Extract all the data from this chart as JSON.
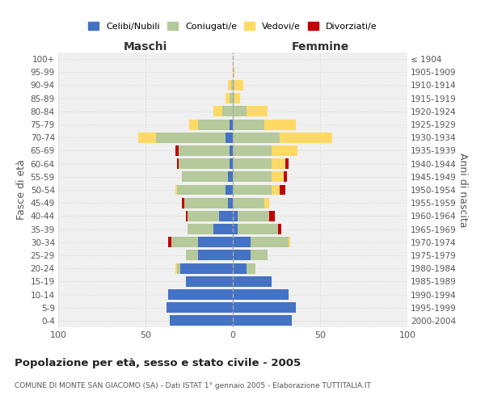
{
  "age_groups": [
    "100+",
    "95-99",
    "90-94",
    "85-89",
    "80-84",
    "75-79",
    "70-74",
    "65-69",
    "60-64",
    "55-59",
    "50-54",
    "45-49",
    "40-44",
    "35-39",
    "30-34",
    "25-29",
    "20-24",
    "15-19",
    "10-14",
    "5-9",
    "0-4"
  ],
  "birth_years": [
    "≤ 1904",
    "1905-1909",
    "1910-1914",
    "1915-1919",
    "1920-1924",
    "1925-1929",
    "1930-1934",
    "1935-1939",
    "1940-1944",
    "1945-1949",
    "1950-1954",
    "1955-1959",
    "1960-1964",
    "1965-1969",
    "1970-1974",
    "1975-1979",
    "1980-1984",
    "1985-1989",
    "1990-1994",
    "1995-1999",
    "2000-2004"
  ],
  "maschi": {
    "celibi": [
      0,
      0,
      0,
      0,
      0,
      2,
      4,
      2,
      2,
      3,
      4,
      3,
      8,
      11,
      20,
      20,
      30,
      27,
      37,
      38,
      36
    ],
    "coniugati": [
      0,
      0,
      1,
      2,
      6,
      18,
      40,
      29,
      29,
      26,
      28,
      25,
      18,
      15,
      15,
      7,
      2,
      0,
      0,
      0,
      0
    ],
    "vedovi": [
      0,
      0,
      2,
      2,
      5,
      5,
      10,
      0,
      0,
      0,
      1,
      0,
      0,
      0,
      0,
      0,
      1,
      0,
      0,
      0,
      0
    ],
    "divorziati": [
      0,
      0,
      0,
      0,
      0,
      0,
      0,
      2,
      1,
      0,
      0,
      1,
      1,
      0,
      2,
      0,
      0,
      0,
      0,
      0,
      0
    ]
  },
  "femmine": {
    "nubili": [
      0,
      0,
      0,
      0,
      0,
      0,
      0,
      0,
      0,
      0,
      0,
      0,
      3,
      3,
      10,
      10,
      8,
      22,
      32,
      36,
      34
    ],
    "coniugate": [
      0,
      0,
      1,
      1,
      8,
      18,
      27,
      22,
      22,
      22,
      22,
      18,
      18,
      23,
      22,
      10,
      5,
      0,
      0,
      0,
      0
    ],
    "vedove": [
      0,
      1,
      5,
      3,
      12,
      18,
      30,
      15,
      8,
      7,
      5,
      3,
      0,
      0,
      1,
      0,
      0,
      0,
      0,
      0,
      0
    ],
    "divorziate": [
      0,
      0,
      0,
      0,
      0,
      0,
      0,
      0,
      2,
      2,
      3,
      0,
      3,
      2,
      0,
      0,
      0,
      0,
      0,
      0,
      0
    ]
  },
  "colors": {
    "celibi_nubili": "#4472C4",
    "coniugati": "#B5C99A",
    "vedovi": "#FFD966",
    "divorziati": "#C00000"
  },
  "xlim": 100,
  "title": "Popolazione per età, sesso e stato civile - 2005",
  "subtitle": "COMUNE DI MONTE SAN GIACOMO (SA) - Dati ISTAT 1° gennaio 2005 - Elaborazione TUTTITALIA.IT",
  "xlabel_left": "Maschi",
  "xlabel_right": "Femmine",
  "ylabel_left": "Fasce di età",
  "ylabel_right": "Anni di nascita",
  "legend_labels": [
    "Celibi/Nubili",
    "Coniugati/e",
    "Vedovi/e",
    "Divorziati/e"
  ],
  "bg_color": "#ffffff",
  "plot_bg": "#f0f0f0",
  "grid_color": "#cccccc"
}
